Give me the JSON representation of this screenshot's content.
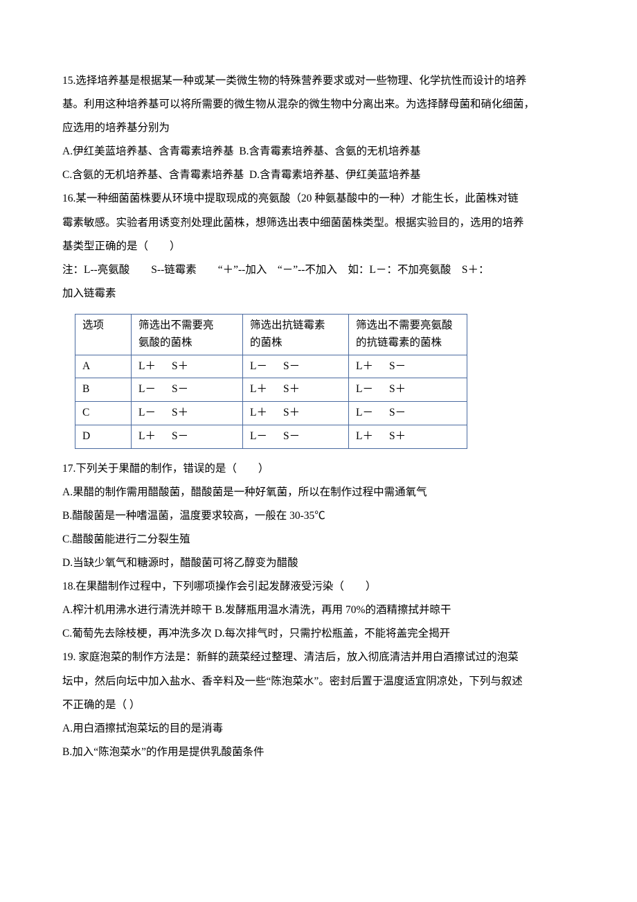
{
  "q15": {
    "stem_l1": "15.选择培养基是根据某一种或某一类微生物的特殊营养要求或对一些物理、化学抗性而设计的培养",
    "stem_l2": "基。利用这种培养基可以将所需要的微生物从混杂的微生物中分离出来。为选择酵母菌和硝化细菌，",
    "stem_l3": "应选用的培养基分别为",
    "optA": "A.伊红美蓝培养基、含青霉素培养基",
    "optB": "B.含青霉素培养基、含氨的无机培养基",
    "optC": "C.含氨的无机培养基、含青霉素培养基",
    "optD": "D.含青霉素培养基、伊红美蓝培养基"
  },
  "q16": {
    "stem_l1": "16.某一种细菌菌株要从环境中提取现成的亮氨酸（20 种氨基酸中的一种）才能生长，此菌株对链",
    "stem_l2": "霉素敏感。实验者用诱变剂处理此菌株，想筛选出表中细菌菌株类型。根据实验目的，选用的培养",
    "stem_l3": "基类型正确的是（　　）",
    "note_l1": "注：L--亮氨酸　　S--链霉素　　“＋”--加入　“－”--不加入　如：L－：不加亮氨酸　S＋：",
    "note_l2": "加入链霉素",
    "table": {
      "header": {
        "c0": "选项",
        "c1a": "筛选出不需要亮",
        "c1b": "氨酸的菌株",
        "c2a": "筛选出抗链霉素",
        "c2b": "的菌株",
        "c3a": "筛选出不需要亮氨酸",
        "c3b": "的抗链霉素的菌株"
      },
      "rows": [
        {
          "c0": "A",
          "c1l": "L＋",
          "c1s": "S＋",
          "c2l": "L－",
          "c2s": "S－",
          "c3l": "L＋",
          "c3s": "S－"
        },
        {
          "c0": "B",
          "c1l": "L－",
          "c1s": "S－",
          "c2l": "L＋",
          "c2s": "S＋",
          "c3l": "L－",
          "c3s": "S＋"
        },
        {
          "c0": "C",
          "c1l": "L－",
          "c1s": "S＋",
          "c2l": "L＋",
          "c2s": "S＋",
          "c3l": "L－",
          "c3s": "S－"
        },
        {
          "c0": "D",
          "c1l": "L＋",
          "c1s": "S－",
          "c2l": "L－",
          "c2s": "S－",
          "c3l": "L＋",
          "c3s": "S＋"
        }
      ]
    }
  },
  "q17": {
    "stem": "17.下列关于果醋的制作，错误的是（　　）",
    "optA": "A.果醋的制作需用醋酸菌，醋酸菌是一种好氧菌，所以在制作过程中需通氧气",
    "optB": "B.醋酸菌是一种嗜温菌，温度要求较高，一般在 30-35℃",
    "optC": "C.醋酸菌能进行二分裂生殖",
    "optD": "D.当缺少氧气和糖源时，醋酸菌可将乙醇变为醋酸"
  },
  "q18": {
    "stem": "18.在果醋制作过程中，下列哪项操作会引起发酵液受污染（　　）",
    "optA": "A.榨汁机用沸水进行清洗并晾干",
    "optB": "B.发酵瓶用温水清洗，再用 70%的酒精擦拭并晾干",
    "optC": "C.葡萄先去除枝梗，再冲洗多次",
    "optD": "D.每次排气时，只需拧松瓶盖，不能将盖完全揭开"
  },
  "q19": {
    "stem_l1": "19. 家庭泡菜的制作方法是：新鲜的蔬菜经过整理、清洁后，放入彻底清洁并用白酒擦试过的泡菜",
    "stem_l2": "坛中，然后向坛中加入盐水、香辛料及一些“陈泡菜水”。密封后置于温度适宜阴凉处，下列与叙述",
    "stem_l3": "不正确的是（ ）",
    "optA": "A.用白酒擦拭泡菜坛的目的是消毒",
    "optB": "B.加入“陈泡菜水”的作用是提供乳酸菌条件"
  }
}
